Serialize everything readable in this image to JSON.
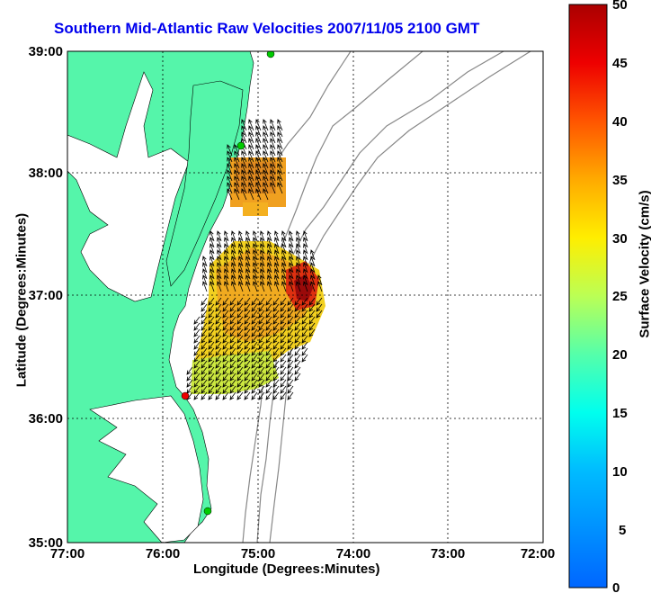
{
  "title": "Southern Mid-Atlantic Raw Velocities 2007/11/05 2100 GMT",
  "xlabel": "Longitude (Degrees:Minutes)",
  "ylabel": "Latitude (Degrees:Minutes)",
  "colorbar_label": "Surface Velocity (cm/s)",
  "x_ticks": [
    "77:00",
    "76:00",
    "75:00",
    "74:00",
    "73:00",
    "72:00"
  ],
  "y_ticks": [
    "39:00",
    "38:00",
    "37:00",
    "36:00",
    "35:00"
  ],
  "colorbar_ticks": [
    "50",
    "45",
    "40",
    "35",
    "30",
    "25",
    "20",
    "15",
    "10",
    "5",
    "0"
  ],
  "colors": {
    "land": "#55f5aa",
    "title": "#0000ee",
    "bathymetry": "#888888",
    "station_green": "#00cc00",
    "station_red": "#ee0000"
  }
}
